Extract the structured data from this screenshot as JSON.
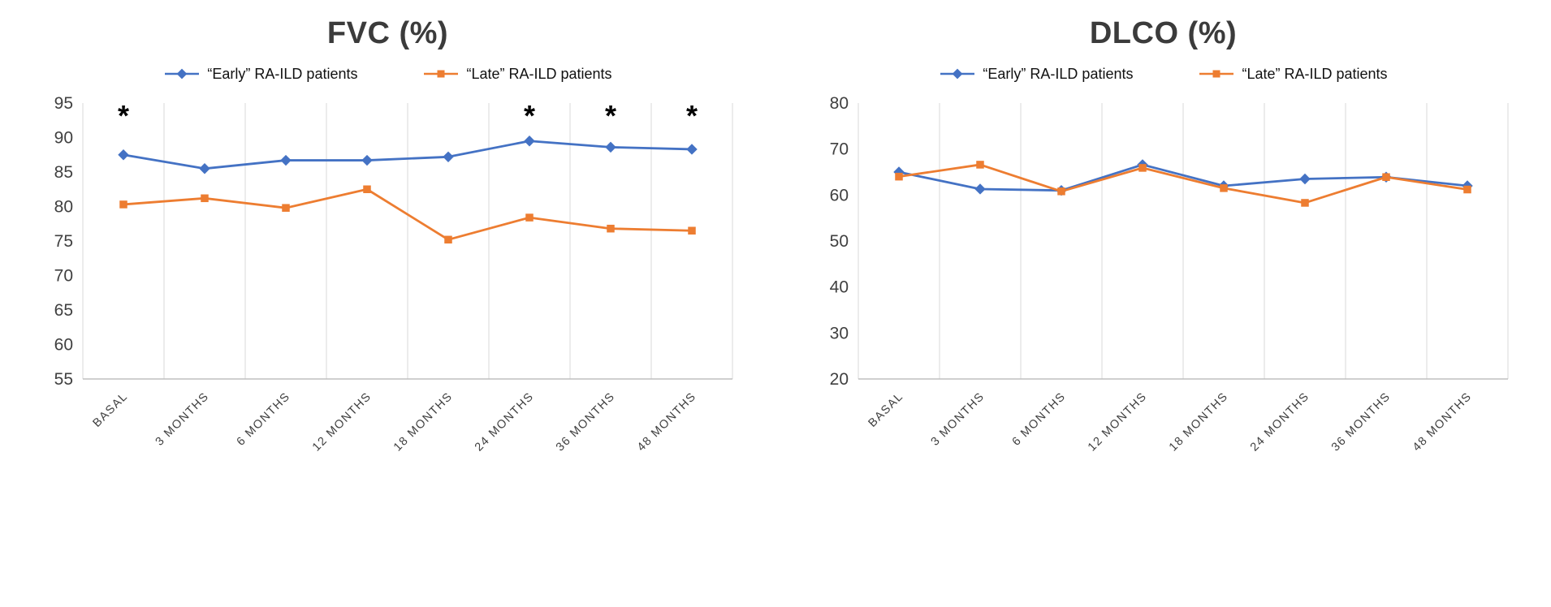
{
  "colors": {
    "early_series": "#4472C4",
    "late_series": "#ED7D31",
    "gridline": "#D9D9D9",
    "axis_line": "#BFBFBF",
    "tick_text": "#404040",
    "title_text": "#3B3B3B",
    "annotation": "#000000"
  },
  "chart_data": [
    {
      "type": "line",
      "title": "FVC (%)",
      "categories": [
        "BASAL",
        "3 MONTHS",
        "6 MONTHS",
        "12 MONTHS",
        "18 MONTHS",
        "24 MONTHS",
        "36 MONTHS",
        "48 MONTHS"
      ],
      "series": [
        {
          "name": "“Early” RA-ILD patients",
          "marker": "diamond",
          "color": "#4472C4",
          "values": [
            87.5,
            85.5,
            86.7,
            86.7,
            87.2,
            89.5,
            88.6,
            88.3
          ]
        },
        {
          "name": "“Late” RA-ILD patients",
          "marker": "square",
          "color": "#ED7D31",
          "values": [
            80.3,
            81.2,
            79.8,
            82.5,
            75.2,
            78.4,
            76.8,
            76.5
          ]
        }
      ],
      "ylim": [
        55,
        95
      ],
      "ytick_step": 5,
      "grid": "vertical",
      "legend_position": "top",
      "annotations": [
        {
          "category_index": 0,
          "text": "*"
        },
        {
          "category_index": 5,
          "text": "*"
        },
        {
          "category_index": 6,
          "text": "*"
        },
        {
          "category_index": 7,
          "text": "*"
        }
      ]
    },
    {
      "type": "line",
      "title": "DLCO (%)",
      "categories": [
        "BASAL",
        "3 MONTHS",
        "6 MONTHS",
        "12 MONTHS",
        "18 MONTHS",
        "24 MONTHS",
        "36 MONTHS",
        "48 MONTHS"
      ],
      "series": [
        {
          "name": "“Early” RA-ILD patients",
          "marker": "diamond",
          "color": "#4472C4",
          "values": [
            65.0,
            61.3,
            61.0,
            66.6,
            62.0,
            63.5,
            63.9,
            62.0
          ]
        },
        {
          "name": "“Late” RA-ILD patients",
          "marker": "square",
          "color": "#ED7D31",
          "values": [
            64.0,
            66.6,
            60.8,
            65.9,
            61.5,
            58.3,
            63.9,
            61.2
          ]
        }
      ],
      "ylim": [
        20,
        80
      ],
      "ytick_step": 10,
      "grid": "vertical",
      "legend_position": "top",
      "annotations": []
    }
  ]
}
